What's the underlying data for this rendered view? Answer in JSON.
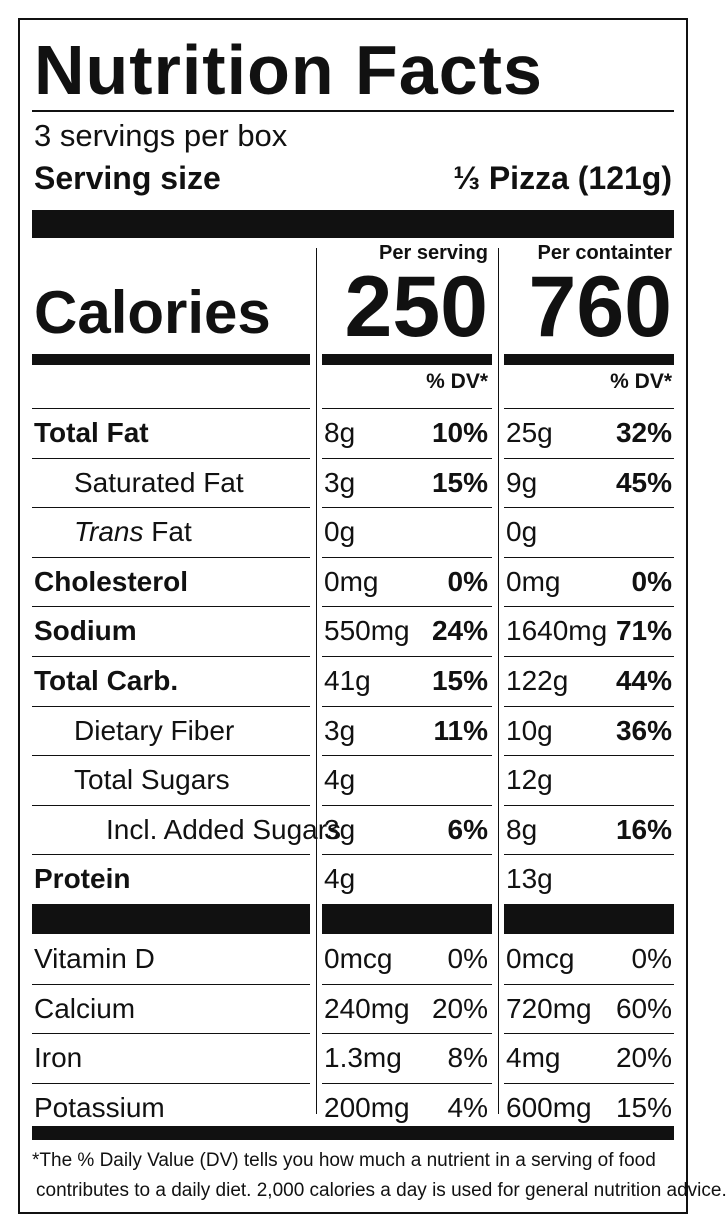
{
  "title": "Nutrition Facts",
  "servings_per_container": "3 servings per box",
  "serving_size_label": "Serving size",
  "serving_size_value": "⅓ Pizza (121g)",
  "col_headers": {
    "per_serving": "Per serving",
    "per_container": "Per containter"
  },
  "calories": {
    "label": "Calories",
    "per_serving": "250",
    "per_container": "760"
  },
  "dv_header": "% DV*",
  "nutrients": [
    {
      "label": "Total Fat",
      "bold": true,
      "indent": 0,
      "s_amt": "8g",
      "s_dv": "10%",
      "c_amt": "25g",
      "c_dv": "32%"
    },
    {
      "label": "Saturated Fat",
      "bold": false,
      "indent": 1,
      "s_amt": "3g",
      "s_dv": "15%",
      "c_amt": "9g",
      "c_dv": "45%"
    },
    {
      "label_italic": "Trans",
      "label": " Fat",
      "bold": false,
      "indent": 1,
      "s_amt": "0g",
      "s_dv": "",
      "c_amt": "0g",
      "c_dv": ""
    },
    {
      "label": "Cholesterol",
      "bold": true,
      "indent": 0,
      "s_amt": "0mg",
      "s_dv": "0%",
      "c_amt": "0mg",
      "c_dv": "0%"
    },
    {
      "label": "Sodium",
      "bold": true,
      "indent": 0,
      "s_amt": "550mg",
      "s_dv": "24%",
      "c_amt": "1640mg",
      "c_dv": "71%"
    },
    {
      "label": "Total Carb.",
      "bold": true,
      "indent": 0,
      "s_amt": "41g",
      "s_dv": "15%",
      "c_amt": "122g",
      "c_dv": "44%"
    },
    {
      "label": "Dietary Fiber",
      "bold": false,
      "indent": 1,
      "s_amt": "3g",
      "s_dv": "11%",
      "c_amt": "10g",
      "c_dv": "36%"
    },
    {
      "label": "Total Sugars",
      "bold": false,
      "indent": 1,
      "s_amt": "4g",
      "s_dv": "",
      "c_amt": "12g",
      "c_dv": ""
    },
    {
      "label": "Incl. Added Sugars",
      "bold": false,
      "indent": 2,
      "s_amt": "3g",
      "s_dv": "6%",
      "c_amt": "8g",
      "c_dv": "16%"
    },
    {
      "label": "Protein",
      "bold": true,
      "indent": 0,
      "s_amt": "4g",
      "s_dv": "",
      "c_amt": "13g",
      "c_dv": ""
    }
  ],
  "vitamins": [
    {
      "label": "Vitamin D",
      "s_amt": "0mcg",
      "s_dv": "0%",
      "c_amt": "0mcg",
      "c_dv": "0%"
    },
    {
      "label": "Calcium",
      "s_amt": "240mg",
      "s_dv": "20%",
      "c_amt": "720mg",
      "c_dv": "60%"
    },
    {
      "label": "Iron",
      "s_amt": "1.3mg",
      "s_dv": "8%",
      "c_amt": "4mg",
      "c_dv": "20%"
    },
    {
      "label": "Potassium",
      "s_amt": "200mg",
      "s_dv": "4%",
      "c_amt": "600mg",
      "c_dv": "15%"
    }
  ],
  "footnote": [
    "*The % Daily Value (DV) tells you how much a nutrient in a serving of food",
    "contributes to a daily diet. 2,000 calories a day is used for general nutrition advice."
  ]
}
